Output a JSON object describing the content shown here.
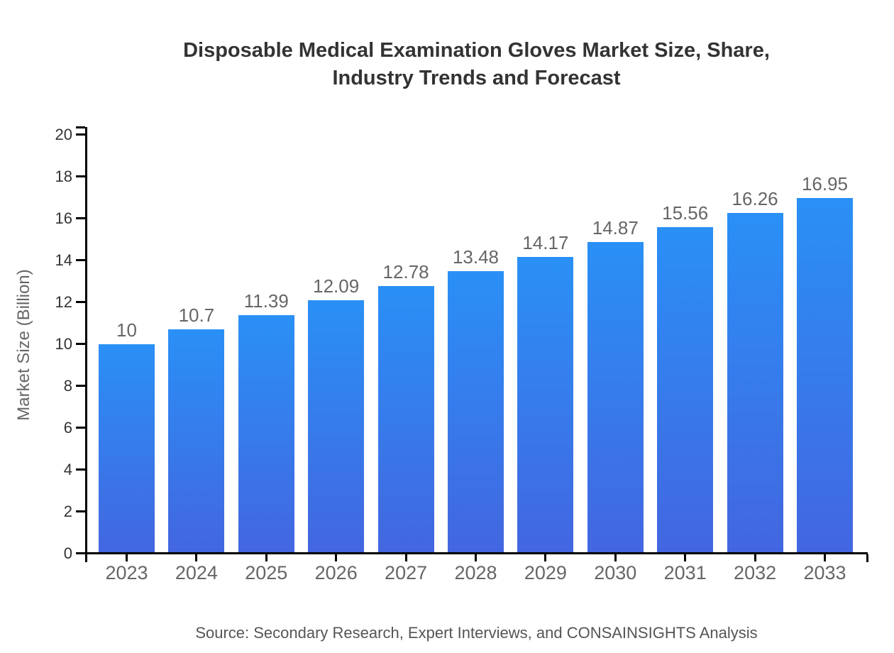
{
  "chart_data": {
    "type": "bar",
    "title": "Disposable Medical Examination Gloves Market Size, Share, Industry Trends and Forecast",
    "title_lines": [
      "Disposable Medical Examination Gloves Market Size, Share,",
      "Industry Trends and Forecast"
    ],
    "xlabel": "",
    "ylabel": "Market Size (Billion)",
    "categories": [
      "2023",
      "2024",
      "2025",
      "2026",
      "2027",
      "2028",
      "2029",
      "2030",
      "2031",
      "2032",
      "2033"
    ],
    "values": [
      10,
      10.7,
      11.39,
      12.09,
      12.78,
      13.48,
      14.17,
      14.87,
      15.56,
      16.26,
      16.95
    ],
    "value_labels": [
      "10",
      "10.7",
      "11.39",
      "12.09",
      "12.78",
      "13.48",
      "14.17",
      "14.87",
      "15.56",
      "16.26",
      "16.95"
    ],
    "ylim": [
      0,
      20
    ],
    "yticks": [
      0,
      2,
      4,
      6,
      8,
      10,
      12,
      14,
      16,
      18,
      20
    ],
    "grid": false,
    "legend": false,
    "source": "Source: Secondary Research, Expert Interviews, and CONSAINSIGHTS Analysis",
    "colors": {
      "bar_gradient_top": "#2A90F6",
      "bar_gradient_bottom": "#4366E0",
      "axis": "#000000",
      "title": "#333333",
      "y_tick_label": "#333333",
      "x_tick_label": "#666666",
      "value_label": "#666666",
      "axis_title": "#666666",
      "source": "#555555",
      "background": "#ffffff"
    }
  }
}
